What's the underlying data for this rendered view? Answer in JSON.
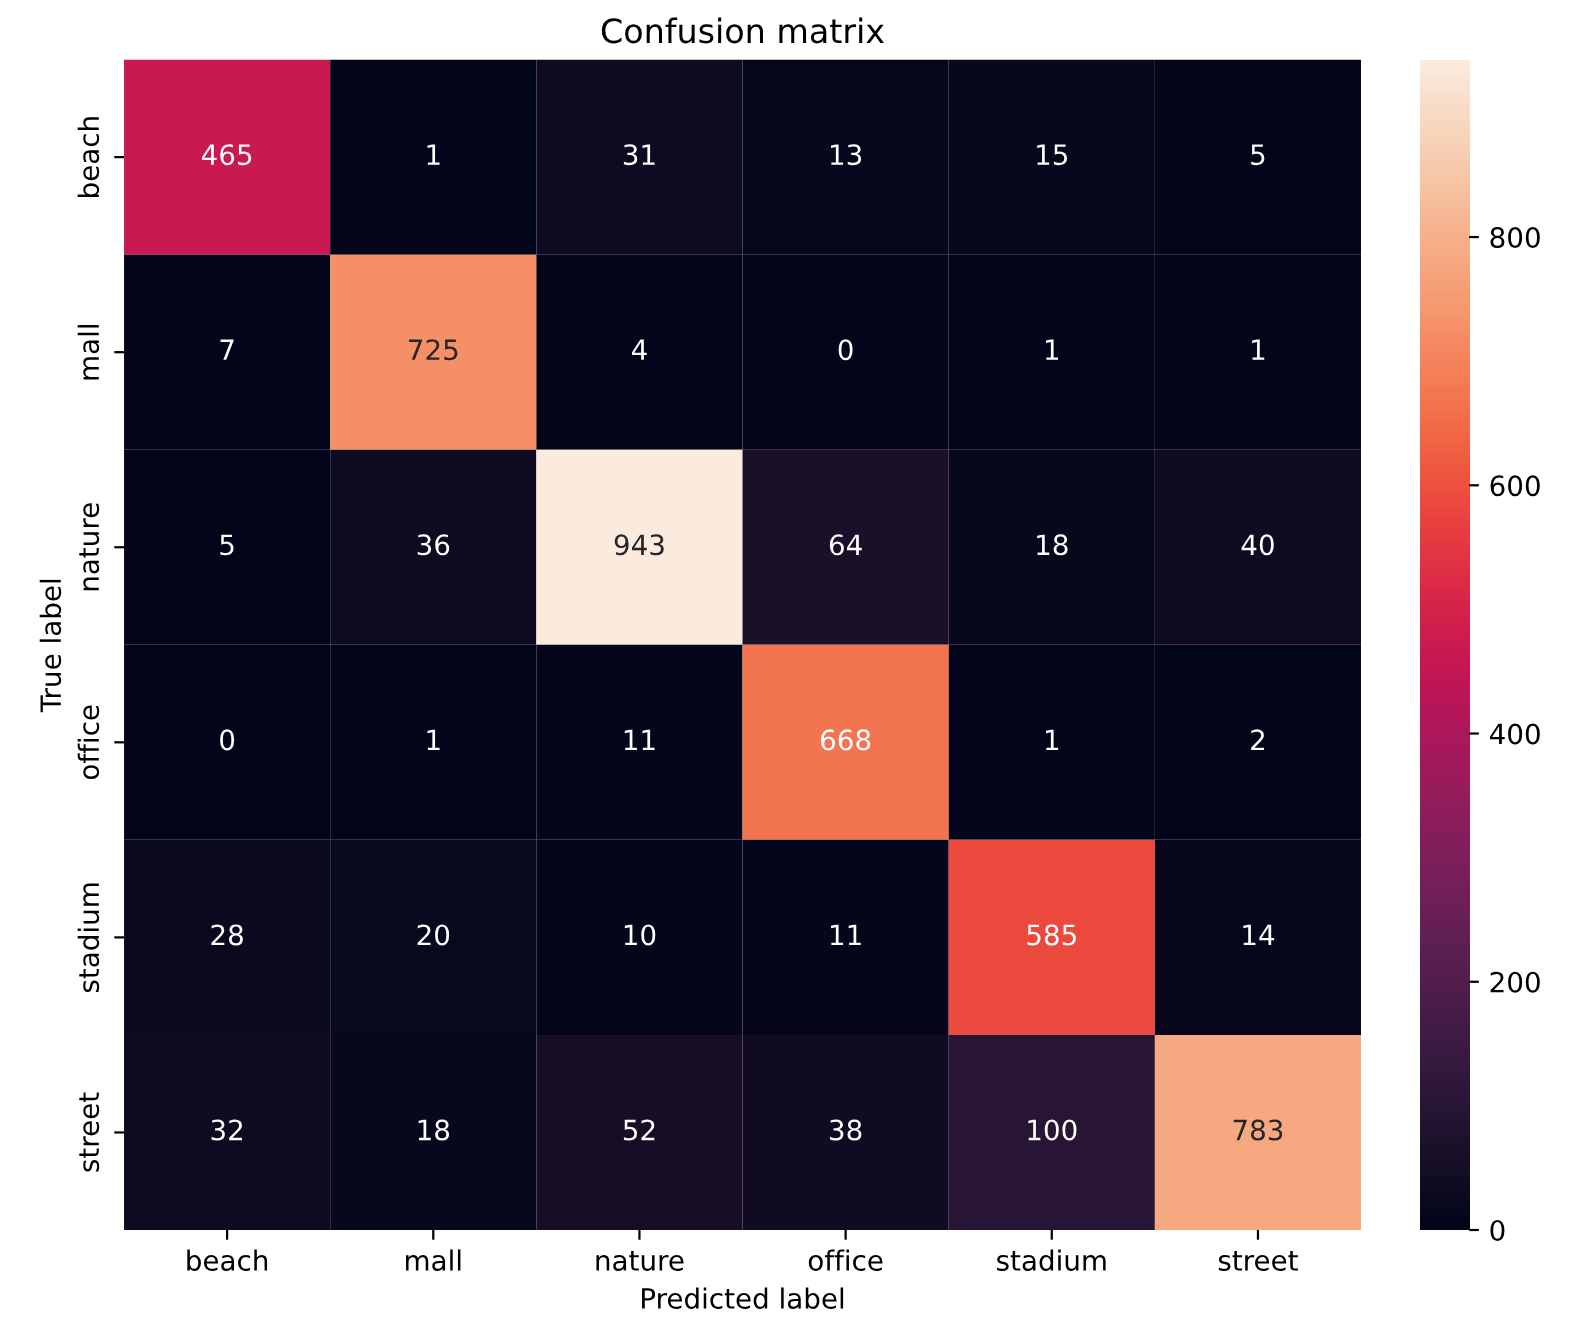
{
  "chart_data": {
    "type": "heatmap",
    "title": "Confusion matrix",
    "xlabel": "Predicted label",
    "ylabel": "True label",
    "categories": [
      "beach",
      "mall",
      "nature",
      "office",
      "stadium",
      "street"
    ],
    "y_categories": [
      "beach",
      "mall",
      "nature",
      "office",
      "stadium",
      "street"
    ],
    "cells": [
      [
        465,
        1,
        31,
        13,
        15,
        5
      ],
      [
        7,
        725,
        4,
        0,
        1,
        1
      ],
      [
        5,
        36,
        943,
        64,
        18,
        40
      ],
      [
        0,
        1,
        11,
        668,
        1,
        2
      ],
      [
        28,
        20,
        10,
        11,
        585,
        14
      ],
      [
        32,
        18,
        52,
        38,
        100,
        783
      ]
    ],
    "clim": [
      0,
      943
    ],
    "cticks": [
      0,
      200,
      400,
      600,
      800
    ],
    "data_labels": true
  }
}
